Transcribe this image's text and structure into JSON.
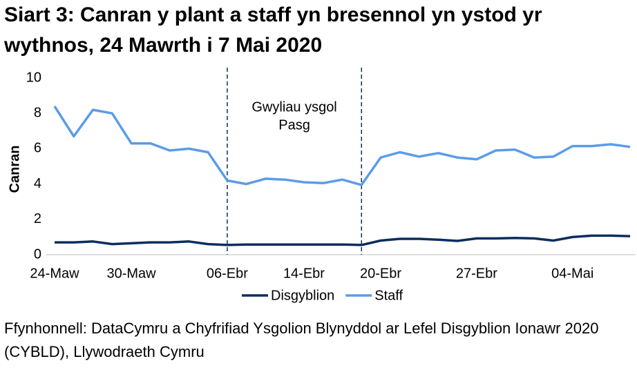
{
  "chart_data": {
    "type": "line",
    "title": "Siart 3: Canran y plant a staff yn bresennol yn ystod yr wythnos, 24 Mawrth i 7 Mai 2020",
    "y_label": "Canran",
    "annotation": [
      "Gwyliau ysgol",
      "Pasg"
    ],
    "source": "Ffynhonnell: DataCymru a Chyfrifiad Ysgolion Blynyddol ar Lefel Disgyblion Ionawr 2020 (CYBLD), Llywodraeth Cymru",
    "categories": [
      "24-Maw",
      null,
      null,
      null,
      "30-Maw",
      null,
      null,
      null,
      null,
      "06-Ebr",
      null,
      null,
      null,
      "14-Ebr",
      null,
      null,
      null,
      "20-Ebr",
      null,
      null,
      null,
      null,
      "27-Ebr",
      null,
      null,
      null,
      null,
      "04-Mai",
      null,
      null,
      null
    ],
    "series": [
      {
        "name": "Disgyblion",
        "color": "#0c2d5e",
        "values": [
          0.7,
          0.7,
          0.75,
          0.6,
          0.65,
          0.7,
          0.7,
          0.75,
          0.6,
          0.55,
          0.58,
          0.58,
          0.58,
          0.58,
          0.58,
          0.58,
          0.55,
          0.8,
          0.9,
          0.9,
          0.85,
          0.78,
          0.92,
          0.92,
          0.95,
          0.92,
          0.8,
          1.0,
          1.08,
          1.08,
          1.05
        ]
      },
      {
        "name": "Staff",
        "color": "#5b9ce8",
        "values": [
          8.4,
          6.7,
          8.2,
          8.0,
          6.3,
          6.3,
          5.9,
          6.0,
          5.8,
          4.2,
          4.0,
          4.3,
          4.25,
          4.1,
          4.05,
          4.25,
          3.95,
          5.5,
          5.8,
          5.55,
          5.75,
          5.5,
          5.4,
          5.9,
          5.95,
          5.5,
          5.55,
          6.15,
          6.15,
          6.25,
          6.1
        ]
      }
    ],
    "ylim": [
      0,
      10
    ],
    "yticks": [
      0,
      2,
      4,
      6,
      8,
      10
    ]
  }
}
